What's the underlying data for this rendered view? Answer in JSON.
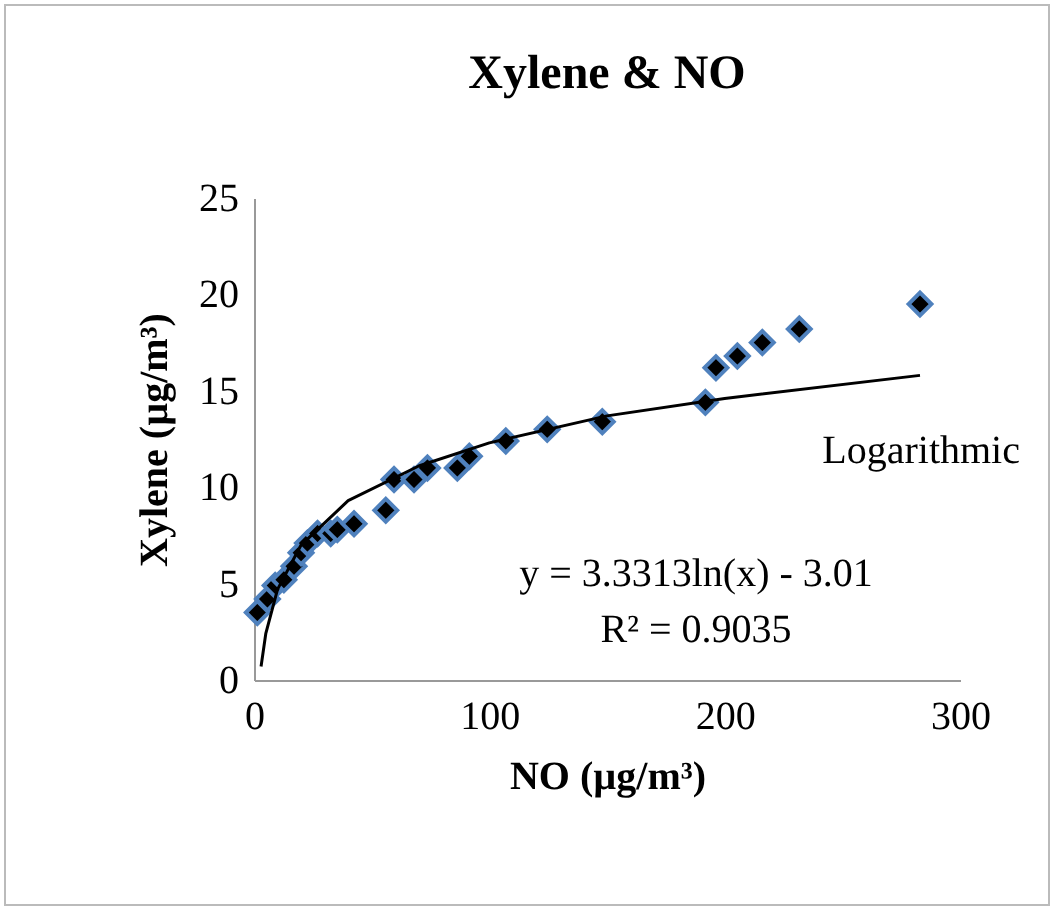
{
  "chart_data": {
    "type": "scatter",
    "title": "Xylene & NO",
    "xlabel": "NO (µg/m³)",
    "ylabel": "Xylene (µg/m³)",
    "xlim": [
      0,
      300
    ],
    "xticks": [
      0,
      100,
      200,
      300
    ],
    "ylim": [
      0,
      25
    ],
    "yticks": [
      0,
      5,
      10,
      15,
      20,
      25
    ],
    "grid": false,
    "marker": "diamond",
    "series": [
      {
        "color": "#000000",
        "x": [
          1.4,
          5.7,
          9,
          12.7,
          17,
          20,
          22.7,
          27,
          32.6,
          35.4,
          42.5,
          56,
          59.5,
          68,
          73.7,
          86.4,
          91.5,
          107,
          124.6,
          148,
          191.8,
          196.3,
          205.4,
          216,
          231.7,
          283
        ],
        "values": [
          3.5,
          4.2,
          4.9,
          5.2,
          5.9,
          6.6,
          7.1,
          7.6,
          7.6,
          7.8,
          8.1,
          8.8,
          10.4,
          10.4,
          11.0,
          11.0,
          11.6,
          12.4,
          13.0,
          13.4,
          14.4,
          16.2,
          16.8,
          17.5,
          18.2,
          19.5
        ]
      },
      {
        "type": "line",
        "name": "Logarithmic",
        "color": "#000000",
        "marker": "none",
        "x": [
          3,
          5,
          10,
          20,
          40,
          70,
          100,
          150,
          200,
          283
        ],
        "values": [
          0.7,
          2.4,
          4.7,
          7.0,
          9.3,
          11.1,
          12.3,
          13.7,
          14.6,
          15.8
        ]
      }
    ],
    "annotations": [
      "y = 3.3313ln(x) - 3.01",
      "R² = 0.9035"
    ]
  }
}
